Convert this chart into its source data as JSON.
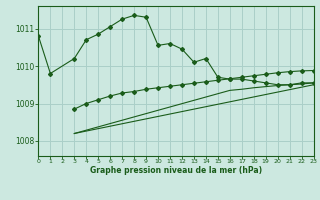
{
  "title": "Graphe pression niveau de la mer (hPa)",
  "background_color": "#cce8e0",
  "grid_color": "#aacfc8",
  "line_color": "#1a5c1a",
  "xlim": [
    0,
    23
  ],
  "ylim": [
    1007.6,
    1011.6
  ],
  "yticks": [
    1008,
    1009,
    1010,
    1011
  ],
  "xticks": [
    0,
    1,
    2,
    3,
    4,
    5,
    6,
    7,
    8,
    9,
    10,
    11,
    12,
    13,
    14,
    15,
    16,
    17,
    18,
    19,
    20,
    21,
    22,
    23
  ],
  "series1_x": [
    0,
    1,
    3,
    4,
    5,
    6,
    7,
    8,
    9,
    10,
    11,
    12,
    13,
    14,
    15,
    16,
    17,
    18,
    19,
    20,
    21,
    22,
    23
  ],
  "series1_y": [
    1010.8,
    1009.8,
    1010.2,
    1010.7,
    1010.85,
    1011.05,
    1011.25,
    1011.35,
    1011.3,
    1010.55,
    1010.6,
    1010.45,
    1010.1,
    1010.2,
    1009.7,
    1009.65,
    1009.65,
    1009.6,
    1009.55,
    1009.5,
    1009.5,
    1009.55,
    1009.55
  ],
  "series2_x": [
    3,
    4,
    5,
    6,
    7,
    8,
    9,
    10,
    11,
    12,
    13,
    14,
    15,
    16,
    17,
    18,
    19,
    20,
    21,
    22,
    23
  ],
  "series2_y": [
    1008.85,
    1009.0,
    1009.1,
    1009.2,
    1009.28,
    1009.32,
    1009.38,
    1009.42,
    1009.46,
    1009.5,
    1009.54,
    1009.58,
    1009.62,
    1009.66,
    1009.7,
    1009.74,
    1009.78,
    1009.82,
    1009.85,
    1009.87,
    1009.88
  ],
  "series3_x": [
    3,
    23
  ],
  "series3_y": [
    1008.2,
    1009.5
  ],
  "series4_x": [
    3,
    16,
    17,
    18,
    19,
    20,
    21,
    22,
    23
  ],
  "series4_y": [
    1008.2,
    1009.35,
    1009.38,
    1009.42,
    1009.45,
    1009.48,
    1009.5,
    1009.52,
    1009.55
  ]
}
